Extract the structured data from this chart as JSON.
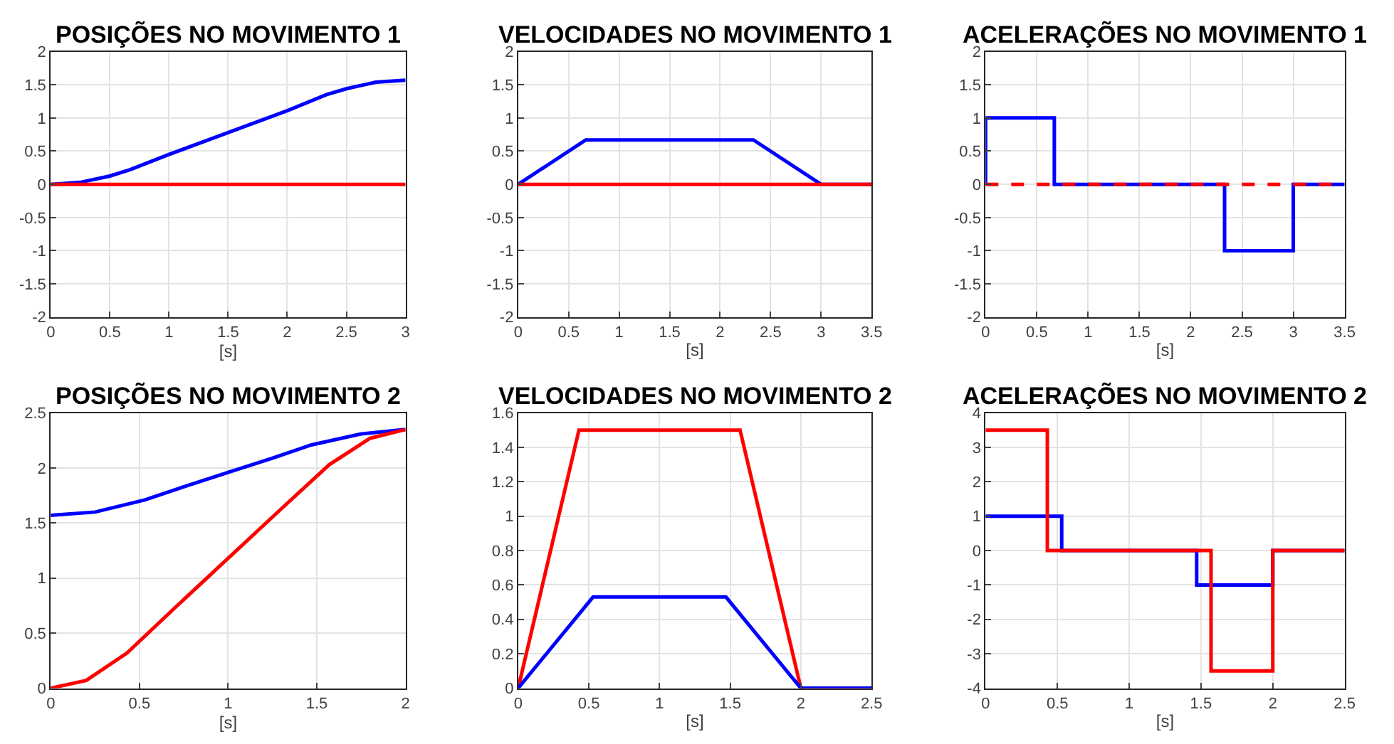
{
  "chart_data": [
    {
      "type": "line",
      "title": "POSIÇÕES NO MOVIMENTO 1",
      "xlabel": "[s]",
      "xlim": [
        0,
        3
      ],
      "xticks": [
        0,
        0.5,
        1,
        1.5,
        2,
        2.5,
        3
      ],
      "ylim": [
        -2,
        2
      ],
      "yticks": [
        -2,
        -1.5,
        -1,
        -0.5,
        0,
        0.5,
        1,
        1.5,
        2
      ],
      "grid": true,
      "line_style": "solid",
      "series": [
        {
          "color": "#0000ff",
          "x": [
            0,
            0.25,
            0.5,
            0.67,
            1,
            1.5,
            2,
            2.33,
            2.5,
            2.75,
            3
          ],
          "values": [
            0,
            0.03,
            0.125,
            0.22,
            0.45,
            0.78,
            1.11,
            1.35,
            1.44,
            1.54,
            1.57
          ]
        },
        {
          "color": "#ff0000",
          "x": [
            0,
            3
          ],
          "values": [
            0,
            0
          ]
        }
      ]
    },
    {
      "type": "line",
      "title": "VELOCIDADES NO MOVIMENTO 1",
      "xlabel": "[s]",
      "xlim": [
        0,
        3.5
      ],
      "xticks": [
        0,
        0.5,
        1,
        1.5,
        2,
        2.5,
        3,
        3.5
      ],
      "ylim": [
        -2,
        2
      ],
      "yticks": [
        -2,
        -1.5,
        -1,
        -0.5,
        0,
        0.5,
        1,
        1.5,
        2
      ],
      "grid": true,
      "line_style": "solid",
      "series": [
        {
          "color": "#0000ff",
          "x": [
            0,
            0.67,
            2.33,
            3,
            3.5
          ],
          "values": [
            0,
            0.67,
            0.67,
            0,
            0
          ]
        },
        {
          "color": "#ff0000",
          "x": [
            0,
            3.5
          ],
          "values": [
            0,
            0
          ]
        }
      ]
    },
    {
      "type": "line",
      "title": "ACELERAÇÕES NO MOVIMENTO 1",
      "xlabel": "[s]",
      "xlim": [
        0,
        3.5
      ],
      "xticks": [
        0,
        0.5,
        1,
        1.5,
        2,
        2.5,
        3,
        3.5
      ],
      "ylim": [
        -2,
        2
      ],
      "yticks": [
        -2,
        -1.5,
        -1,
        -0.5,
        0,
        0.5,
        1,
        1.5,
        2
      ],
      "grid": true,
      "line_style": "solid",
      "series": [
        {
          "color": "#0000ff",
          "x": [
            0,
            0,
            0.67,
            0.67,
            2.33,
            2.33,
            3,
            3,
            3.5
          ],
          "values": [
            0,
            1,
            1,
            0,
            0,
            -1,
            -1,
            0,
            0
          ]
        },
        {
          "color": "#ff0000",
          "line_style": "dashed",
          "x": [
            0,
            3.5
          ],
          "values": [
            0,
            0
          ]
        }
      ]
    },
    {
      "type": "line",
      "title": "POSIÇÕES NO MOVIMENTO 2",
      "xlabel": "[s]",
      "xlim": [
        0,
        2
      ],
      "xticks": [
        0,
        0.5,
        1,
        1.5,
        2
      ],
      "ylim": [
        0,
        2.5
      ],
      "yticks": [
        0,
        0.5,
        1,
        1.5,
        2,
        2.5
      ],
      "grid": true,
      "line_style": "solid",
      "series": [
        {
          "color": "#0000ff",
          "x": [
            0,
            0.25,
            0.53,
            0.75,
            1,
            1.25,
            1.47,
            1.75,
            2
          ],
          "values": [
            1.57,
            1.6,
            1.71,
            1.83,
            1.96,
            2.09,
            2.21,
            2.31,
            2.35
          ]
        },
        {
          "color": "#ff0000",
          "x": [
            0,
            0.2,
            0.43,
            0.7,
            1,
            1.3,
            1.57,
            1.8,
            2
          ],
          "values": [
            0,
            0.07,
            0.32,
            0.73,
            1.18,
            1.63,
            2.03,
            2.27,
            2.35
          ]
        }
      ]
    },
    {
      "type": "line",
      "title": "VELOCIDADES NO MOVIMENTO 2",
      "xlabel": "[s]",
      "xlim": [
        0,
        2.5
      ],
      "xticks": [
        0,
        0.5,
        1,
        1.5,
        2,
        2.5
      ],
      "ylim": [
        0,
        1.6
      ],
      "yticks": [
        0,
        0.2,
        0.4,
        0.6,
        0.8,
        1,
        1.2,
        1.4,
        1.6
      ],
      "grid": true,
      "line_style": "solid",
      "series": [
        {
          "color": "#ff0000",
          "x": [
            0,
            0.43,
            1.57,
            2,
            2.5
          ],
          "values": [
            0,
            1.5,
            1.5,
            0,
            0
          ]
        },
        {
          "color": "#0000ff",
          "x": [
            0,
            0.53,
            1.47,
            2,
            2.5
          ],
          "values": [
            0,
            0.53,
            0.53,
            0,
            0
          ]
        }
      ]
    },
    {
      "type": "line",
      "title": "ACELERAÇÕES NO MOVIMENTO 2",
      "xlabel": "[s]",
      "xlim": [
        0,
        2.5
      ],
      "xticks": [
        0,
        0.5,
        1,
        1.5,
        2,
        2.5
      ],
      "ylim": [
        -4,
        4
      ],
      "yticks": [
        -4,
        -3,
        -2,
        -1,
        0,
        1,
        2,
        3,
        4
      ],
      "grid": true,
      "line_style": "solid",
      "series": [
        {
          "color": "#0000ff",
          "x": [
            0,
            0.53,
            0.53,
            1.47,
            1.47,
            2,
            2,
            2.5
          ],
          "values": [
            1,
            1,
            0,
            0,
            -1,
            -1,
            0,
            0
          ]
        },
        {
          "color": "#ff0000",
          "x": [
            0,
            0.43,
            0.43,
            1.57,
            1.57,
            2,
            2,
            2.5
          ],
          "values": [
            3.5,
            3.5,
            0,
            0,
            -3.5,
            -3.5,
            0,
            0
          ]
        }
      ]
    }
  ]
}
